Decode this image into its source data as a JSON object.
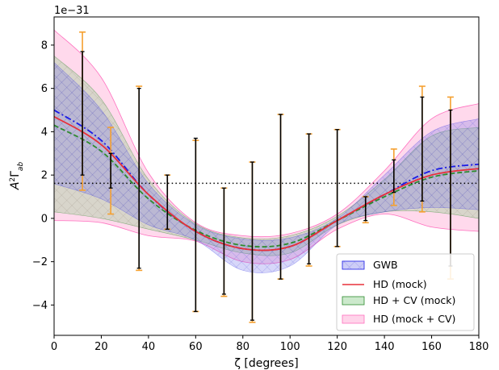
{
  "chart_data": {
    "type": "line",
    "xlabel": "ζ [degrees]",
    "ylabel": "A²Γab",
    "ylabel_base": "A",
    "ylabel_sup": "2",
    "ylabel_gamma": "Γ",
    "ylabel_sub": "ab",
    "offset_label": "1e−31",
    "xlim": [
      0,
      180
    ],
    "ylim": [
      -5.4,
      9.3
    ],
    "x_ticks": [
      "0",
      "20",
      "40",
      "60",
      "80",
      "100",
      "120",
      "140",
      "160",
      "180"
    ],
    "y_ticks": [
      "−4",
      "−2",
      "0",
      "2",
      "4",
      "6",
      "8"
    ],
    "reference_line_y": 1.62,
    "legend": {
      "placement": "lower-right",
      "entries": [
        "GWB",
        "HD (mock)",
        "HD +  CV (mock)",
        "HD (mock + CV)"
      ]
    },
    "colors": {
      "gwb_fill": "#6f6fe8",
      "gwb_line": "#1a1ae6",
      "hd_mock": "#e8303a",
      "hd_cv_mock": "#2e8b2e",
      "hd_cv_mock_fill": "#8fcf8f",
      "hd_mock_cv_fill": "#ff9fd0",
      "hd_mock_cv_edge": "#ff6fbf",
      "errorbar_outer": "#f5a030",
      "errorbar_inner": "#000000"
    },
    "curve_x": [
      0,
      20,
      40,
      60,
      80,
      100,
      120,
      140,
      160,
      180
    ],
    "series": [
      {
        "name": "GWB",
        "style": "band-with-median",
        "median": [
          5.0,
          3.6,
          1.1,
          -0.6,
          -1.4,
          -1.3,
          -0.1,
          1.1,
          2.2,
          2.5
        ],
        "lower": [
          1.6,
          0.9,
          -0.3,
          -1.0,
          -2.4,
          -2.2,
          -0.3,
          0.3,
          0.5,
          0.4
        ],
        "upper": [
          7.2,
          5.0,
          1.6,
          -0.3,
          -0.95,
          -0.9,
          0.0,
          2.0,
          4.0,
          4.6
        ]
      },
      {
        "name": "HD (mock)",
        "style": "solid-line",
        "values": [
          4.7,
          3.4,
          1.1,
          -0.6,
          -1.4,
          -1.3,
          -0.1,
          1.1,
          2.0,
          2.3
        ]
      },
      {
        "name": "HD +  CV (mock)",
        "style": "band-with-dashed-line",
        "median": [
          4.3,
          3.1,
          0.9,
          -0.55,
          -1.25,
          -1.15,
          -0.1,
          1.0,
          1.9,
          2.2
        ],
        "lower": [
          0.3,
          0.0,
          -0.5,
          -1.0,
          -1.6,
          -1.6,
          -0.3,
          0.3,
          0.3,
          0.0
        ],
        "upper": [
          7.5,
          5.5,
          1.8,
          -0.25,
          -0.9,
          -0.8,
          0.1,
          1.8,
          3.8,
          4.2
        ]
      },
      {
        "name": "HD (mock + CV)",
        "style": "band",
        "lower": [
          -0.1,
          -0.2,
          -0.8,
          -1.05,
          -2.0,
          -1.9,
          -0.5,
          0.2,
          -0.4,
          -0.6
        ],
        "upper": [
          8.7,
          6.5,
          2.1,
          -0.2,
          -0.8,
          -0.7,
          0.2,
          2.2,
          4.6,
          5.3
        ]
      }
    ],
    "error_bars": {
      "x": [
        12,
        24,
        36,
        48,
        60,
        72,
        84,
        96,
        108,
        120,
        132,
        144,
        156,
        168
      ],
      "outer_low": [
        1.3,
        0.2,
        -2.4,
        -0.5,
        -4.3,
        -3.6,
        -4.8,
        -2.8,
        -2.2,
        -1.3,
        -0.2,
        0.6,
        0.3,
        -2.8
      ],
      "outer_high": [
        8.6,
        4.2,
        6.1,
        2.0,
        3.6,
        1.4,
        2.6,
        4.8,
        3.9,
        4.1,
        1.0,
        3.2,
        6.1,
        5.6
      ],
      "inner_low": [
        2.0,
        1.4,
        -2.3,
        -0.5,
        -4.3,
        -3.5,
        -4.7,
        -2.8,
        -2.1,
        -1.3,
        -0.1,
        1.2,
        0.8,
        -2.2
      ],
      "inner_high": [
        7.7,
        3.0,
        6.0,
        2.0,
        3.7,
        1.4,
        2.6,
        4.8,
        3.9,
        4.1,
        1.0,
        2.7,
        5.6,
        5.0
      ]
    }
  }
}
